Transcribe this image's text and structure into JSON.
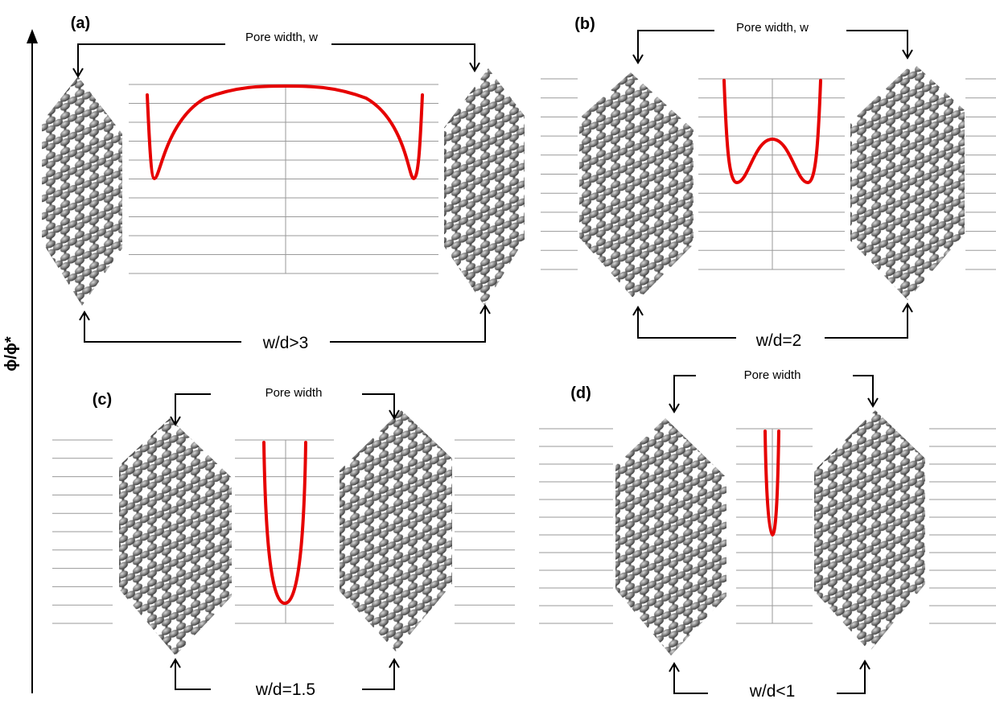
{
  "y_axis_label": "ϕ/ϕ*",
  "panels": [
    {
      "label": "(a)",
      "top_label": "Pore width, w",
      "bottom_label": "w/d>3"
    },
    {
      "label": "(b)",
      "top_label": "Pore width, w",
      "bottom_label": "w/d=2"
    },
    {
      "label": "(c)",
      "top_label": "Pore width",
      "bottom_label": "w/d=1.5"
    },
    {
      "label": "(d)",
      "top_label": "Pore width",
      "bottom_label": "w/d<1"
    }
  ]
}
